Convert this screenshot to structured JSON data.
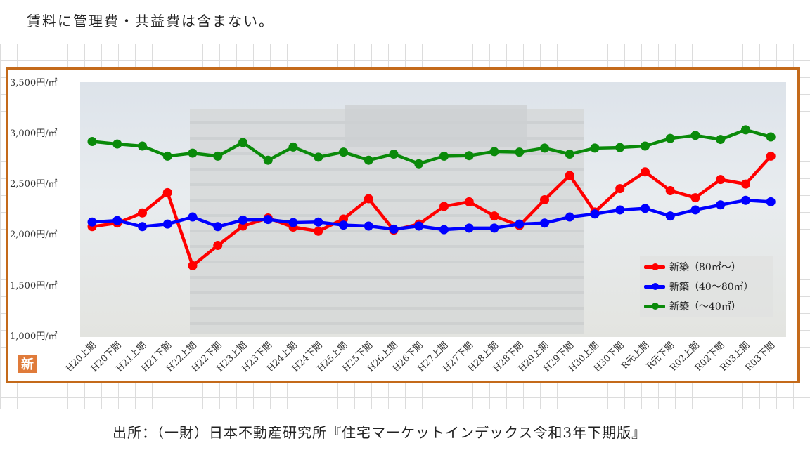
{
  "header": {
    "note": "賃料に管理費・共益費は含まない。"
  },
  "footer": {
    "source": "出所：（一財）日本不動産研究所『住宅マーケットインデックス令和3年下期版』"
  },
  "badge": {
    "label": "新"
  },
  "chart_data": {
    "type": "line",
    "categories": [
      "H20上期",
      "H20下期",
      "H21上期",
      "H21下期",
      "H22上期",
      "H22下期",
      "H23上期",
      "H23下期",
      "H24上期",
      "H24下期",
      "H25上期",
      "H25下期",
      "H26上期",
      "H26下期",
      "H27上期",
      "H27下期",
      "H28上期",
      "H28下期",
      "H29上期",
      "H29下期",
      "H30上期",
      "H30下期",
      "R元上期",
      "R元下期",
      "R02上期",
      "R02下期",
      "R03上期",
      "R03下期"
    ],
    "y_tick_labels": [
      "3,500円/㎡",
      "3,000円/㎡",
      "2,500円/㎡",
      "2,000円/㎡",
      "1,500円/㎡",
      "1,000円/㎡"
    ],
    "ylim": [
      1000,
      3500
    ],
    "series": [
      {
        "name": "新築（80㎡～）",
        "color": "#ff0000",
        "values": [
          2075,
          2110,
          2210,
          2410,
          1690,
          1890,
          2080,
          2160,
          2070,
          2030,
          2150,
          2350,
          2040,
          2100,
          2275,
          2320,
          2180,
          2085,
          2340,
          2580,
          2220,
          2450,
          2615,
          2430,
          2360,
          2540,
          2495,
          2770
        ]
      },
      {
        "name": "新築（40～80㎡）",
        "color": "#0000ff",
        "values": [
          2120,
          2135,
          2075,
          2100,
          2170,
          2075,
          2140,
          2145,
          2115,
          2120,
          2090,
          2080,
          2050,
          2080,
          2045,
          2060,
          2060,
          2100,
          2110,
          2170,
          2200,
          2240,
          2255,
          2180,
          2240,
          2290,
          2335,
          2320
        ]
      },
      {
        "name": "新築（～40㎡）",
        "color": "#0a8a0a",
        "values": [
          2915,
          2890,
          2870,
          2770,
          2800,
          2770,
          2905,
          2730,
          2860,
          2760,
          2810,
          2730,
          2790,
          2695,
          2770,
          2775,
          2815,
          2810,
          2850,
          2790,
          2850,
          2855,
          2870,
          2945,
          2975,
          2935,
          3030,
          2960
        ]
      }
    ],
    "grid": false,
    "legend_position": "bottom-right"
  }
}
